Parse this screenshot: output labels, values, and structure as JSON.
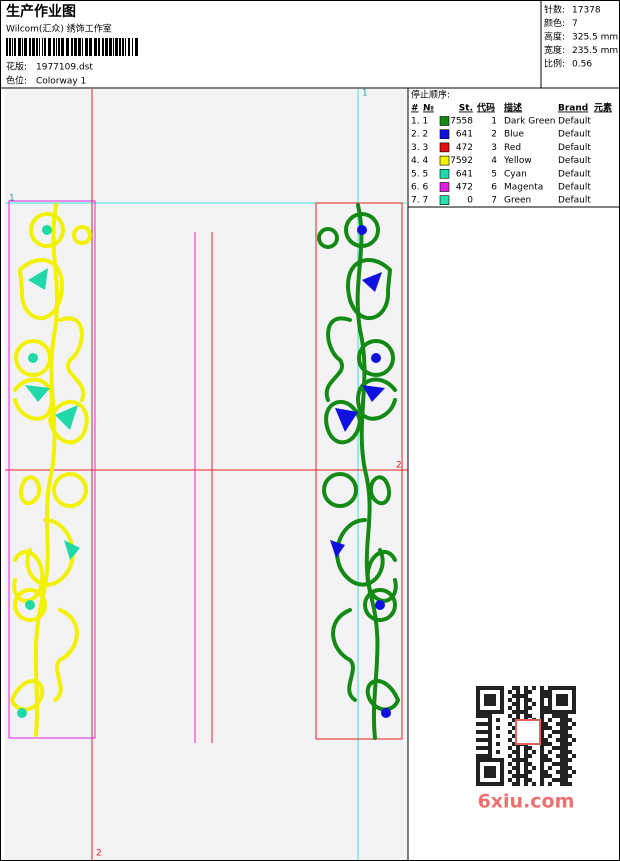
{
  "header": {
    "title": "生产作业图",
    "subtitle": "Wilcom(汇众) 绣饰工作室",
    "design_label": "花版:",
    "design": "1977109.dst",
    "colorway_label": "色位:",
    "colorway": "Colorway 1"
  },
  "info": [
    {
      "label": "针数:",
      "value": "17378"
    },
    {
      "label": "颜色:",
      "value": "7"
    },
    {
      "label": "高度:",
      "value": "325.5 mm"
    },
    {
      "label": "宽度:",
      "value": "235.5 mm"
    },
    {
      "label": "比例:",
      "value": "0.56"
    }
  ],
  "stop_sequence": {
    "title": "停止顺序:",
    "columns": [
      "#",
      "№",
      "St.",
      "代码",
      "描述",
      "Brand",
      "元素"
    ],
    "rows": [
      {
        "seq": "1. 1",
        "color": "#138a13",
        "stitches": 7558,
        "code": 1,
        "desc": "Dark Green",
        "brand": "Default"
      },
      {
        "seq": "2. 2",
        "color": "#1010e0",
        "stitches": 641,
        "code": 2,
        "desc": "Blue",
        "brand": "Default"
      },
      {
        "seq": "3. 3",
        "color": "#e01010",
        "stitches": 472,
        "code": 3,
        "desc": "Red",
        "brand": "Default"
      },
      {
        "seq": "4. 4",
        "color": "#f2f200",
        "stitches": 7592,
        "code": 4,
        "desc": "Yellow",
        "brand": "Default"
      },
      {
        "seq": "5. 5",
        "color": "#20d8a8",
        "stitches": 641,
        "code": 5,
        "desc": "Cyan",
        "brand": "Default"
      },
      {
        "seq": "6. 6",
        "color": "#e020e0",
        "stitches": 472,
        "code": 6,
        "desc": "Magenta",
        "brand": "Default"
      },
      {
        "seq": "7. 7",
        "color": "#28e0a8",
        "stitches": 0,
        "code": 7,
        "desc": "Green",
        "brand": "Default"
      }
    ]
  },
  "guides": {
    "top_horizontal": "1",
    "top_vertical": "1",
    "mid_horizontal": "2",
    "bottom_vertical": "2"
  },
  "watermark": "6xiu.com"
}
